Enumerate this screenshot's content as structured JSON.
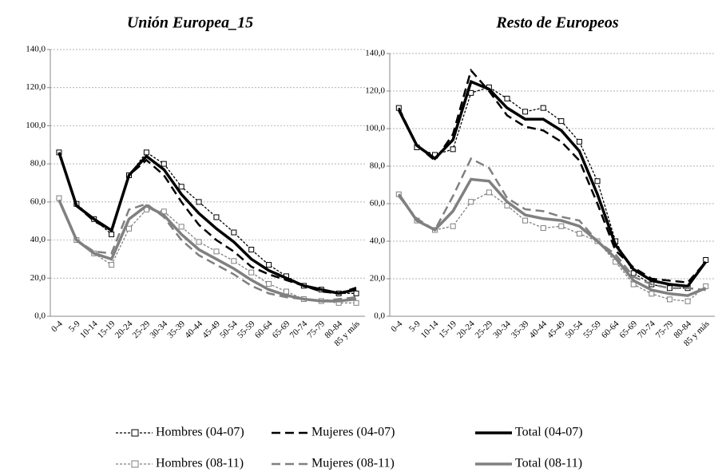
{
  "chart_data": [
    {
      "type": "line",
      "title": "Unión Europea_15",
      "categories": [
        "0-4",
        "5-9",
        "10-14",
        "15-19",
        "20-24",
        "25-29",
        "30-34",
        "35-39",
        "40-44",
        "45-49",
        "50-54",
        "55-59",
        "60-64",
        "65-69",
        "70-74",
        "75-79",
        "80-84",
        "85 y más"
      ],
      "ylim": [
        0,
        140
      ],
      "yticks": [
        {
          "value": 0,
          "label": "0,0"
        },
        {
          "value": 20,
          "label": "20,0"
        },
        {
          "value": 40,
          "label": "40,0"
        },
        {
          "value": 60,
          "label": "60,0"
        },
        {
          "value": 80,
          "label": "80,0"
        },
        {
          "value": 100,
          "label": "100,0"
        },
        {
          "value": 120,
          "label": "120,0"
        },
        {
          "value": 140,
          "label": "140,0"
        }
      ],
      "grid": true,
      "series": [
        {
          "name": "Hombres (04-07)",
          "color": "#000000",
          "dash": "dotted",
          "marker": "square",
          "values": [
            86,
            59,
            51,
            43,
            74,
            86,
            80,
            68,
            60,
            52,
            44,
            35,
            27,
            21,
            16,
            14,
            12,
            12
          ]
        },
        {
          "name": "Mujeres (04-07)",
          "color": "#000000",
          "dash": "dashed",
          "values": [
            86,
            58,
            50,
            45,
            74,
            82,
            74,
            60,
            48,
            40,
            34,
            26,
            22,
            19,
            16,
            13,
            12,
            15
          ]
        },
        {
          "name": "Total (04-07)",
          "color": "#000000",
          "dash": "solid",
          "values": [
            86,
            58,
            51,
            45,
            74,
            84,
            77,
            64,
            54,
            46,
            39,
            30,
            24,
            20,
            16,
            14,
            12,
            14
          ]
        },
        {
          "name": "Hombres (08-11)",
          "color": "#808080",
          "dash": "dotted",
          "marker": "square",
          "values": [
            62,
            40,
            33,
            27,
            46,
            56,
            55,
            47,
            39,
            34,
            29,
            23,
            17,
            13,
            9,
            8,
            7,
            7
          ]
        },
        {
          "name": "Mujeres (08-11)",
          "color": "#808080",
          "dash": "dashed",
          "values": [
            61,
            40,
            34,
            33,
            56,
            59,
            52,
            40,
            32,
            27,
            22,
            16,
            12,
            10,
            9,
            8,
            9,
            10
          ]
        },
        {
          "name": "Total (08-11)",
          "color": "#808080",
          "dash": "solid",
          "values": [
            61,
            40,
            33,
            30,
            51,
            58,
            53,
            43,
            35,
            30,
            25,
            19,
            14,
            11,
            9,
            8,
            8,
            9
          ]
        }
      ]
    },
    {
      "type": "line",
      "title": "Resto de Europeos",
      "categories": [
        "0-4",
        "5-9",
        "10-14",
        "15-19",
        "20-24",
        "25-29",
        "30-34",
        "35-39",
        "40-44",
        "45-49",
        "50-54",
        "55-59",
        "60-64",
        "65-69",
        "70-74",
        "75-79",
        "80-84",
        "85 y más"
      ],
      "ylim": [
        0,
        140
      ],
      "yticks": [
        {
          "value": 0,
          "label": "0,0"
        },
        {
          "value": 20,
          "label": "20,0"
        },
        {
          "value": 40,
          "label": "40,0"
        },
        {
          "value": 60,
          "label": "60,0"
        },
        {
          "value": 80,
          "label": "80,0"
        },
        {
          "value": 100,
          "label": "100,0"
        },
        {
          "value": 120,
          "label": "120,0"
        },
        {
          "value": 140,
          "label": "140,0"
        }
      ],
      "grid": true,
      "series": [
        {
          "name": "Hombres (04-07)",
          "color": "#000000",
          "dash": "dotted",
          "marker": "square",
          "values": [
            111,
            90,
            86,
            89,
            119,
            122,
            116,
            109,
            111,
            104,
            93,
            72,
            40,
            23,
            17,
            15,
            15,
            30
          ]
        },
        {
          "name": "Mujeres (04-07)",
          "color": "#000000",
          "dash": "dashed",
          "values": [
            111,
            91,
            83,
            97,
            131,
            120,
            107,
            101,
            99,
            93,
            83,
            60,
            35,
            26,
            20,
            19,
            18,
            29
          ]
        },
        {
          "name": "Total (04-07)",
          "color": "#000000",
          "dash": "solid",
          "values": [
            110,
            91,
            84,
            94,
            125,
            121,
            111,
            105,
            105,
            99,
            88,
            65,
            38,
            25,
            19,
            17,
            16,
            29
          ]
        },
        {
          "name": "Hombres (08-11)",
          "color": "#808080",
          "dash": "dotted",
          "marker": "square",
          "values": [
            65,
            51,
            46,
            48,
            61,
            66,
            59,
            51,
            47,
            48,
            44,
            40,
            29,
            17,
            12,
            9,
            8,
            16
          ]
        },
        {
          "name": "Mujeres (08-11)",
          "color": "#808080",
          "dash": "dashed",
          "values": [
            64,
            52,
            46,
            64,
            84,
            79,
            63,
            57,
            56,
            53,
            51,
            40,
            33,
            21,
            17,
            15,
            15,
            14
          ]
        },
        {
          "name": "Total (08-11)",
          "color": "#808080",
          "dash": "solid",
          "values": [
            65,
            51,
            46,
            56,
            73,
            72,
            61,
            54,
            52,
            51,
            48,
            40,
            31,
            19,
            14,
            12,
            11,
            15
          ]
        }
      ]
    }
  ]
}
